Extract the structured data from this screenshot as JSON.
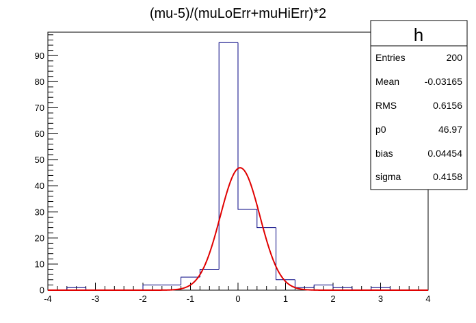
{
  "chart_data": {
    "type": "bar",
    "title": "(mu-5)/(muLoErr+muHiErr)*2",
    "xlabel": "",
    "ylabel": "",
    "xlim": [
      -4,
      4
    ],
    "ylim": [
      0,
      99
    ],
    "x_ticks": [
      -4,
      -3,
      -2,
      -1,
      0,
      1,
      2,
      3,
      4
    ],
    "y_ticks": [
      0,
      10,
      20,
      30,
      40,
      50,
      60,
      70,
      80,
      90
    ],
    "bin_edges": [
      -4.0,
      -3.6,
      -3.2,
      -2.8,
      -2.4,
      -2.0,
      -1.6,
      -1.2,
      -0.8,
      -0.4,
      0.0,
      0.4,
      0.8,
      1.2,
      1.6,
      2.0,
      2.4,
      2.8,
      3.2,
      3.6,
      4.0
    ],
    "bin_values": [
      0,
      1,
      0,
      0,
      0,
      2,
      2,
      5,
      8,
      95,
      31,
      24,
      4,
      1,
      2,
      1,
      0,
      1,
      0,
      0
    ],
    "hist_color": "#000080",
    "fit": {
      "function": "gaus",
      "color": "#e00000",
      "p0": 46.97,
      "bias": 0.04454,
      "sigma": 0.4158,
      "x_range": [
        -4,
        4
      ]
    },
    "stats_box": {
      "name": "h",
      "rows": [
        {
          "label": "Entries",
          "value": "200"
        },
        {
          "label": "Mean",
          "value": "-0.03165"
        },
        {
          "label": "RMS",
          "value": "0.6156"
        },
        {
          "label": "p0",
          "value": "46.97"
        },
        {
          "label": "bias",
          "value": "0.04454"
        },
        {
          "label": "sigma",
          "value": "0.4158"
        }
      ]
    }
  }
}
